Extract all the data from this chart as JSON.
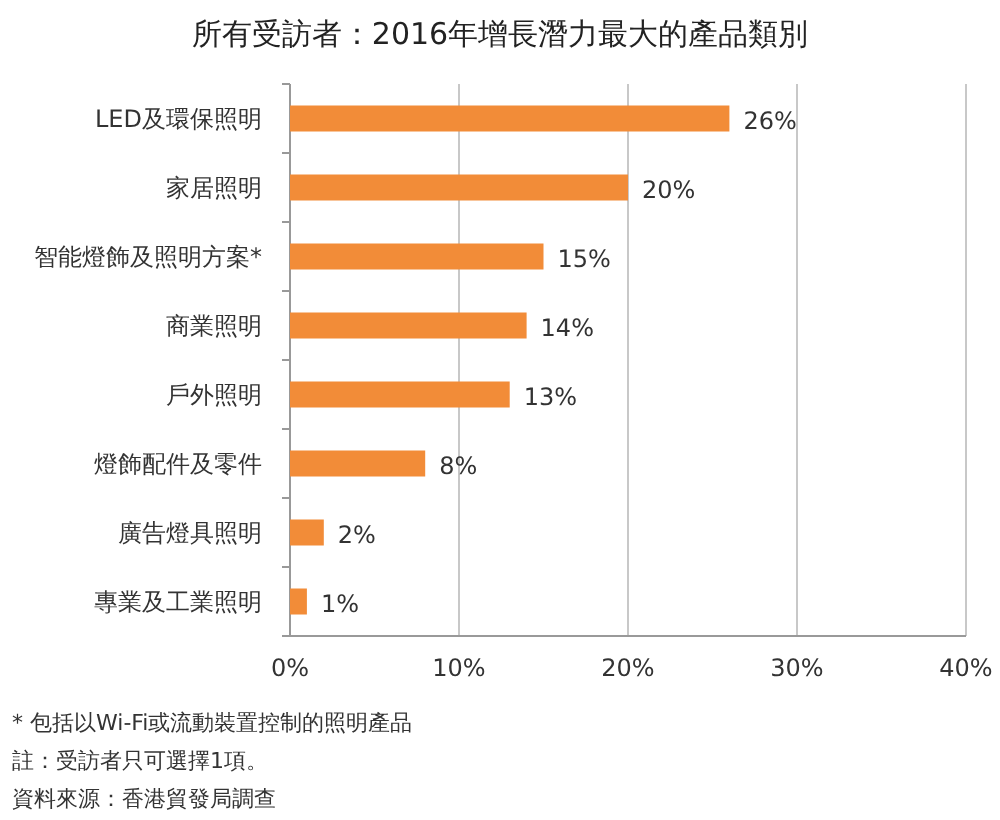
{
  "chart_data": {
    "type": "bar",
    "orientation": "horizontal",
    "title": "所有受訪者：2016年增長潛力最大的產品類別",
    "categories": [
      "LED及環保照明",
      "家居照明",
      "智能燈飾及照明方案*",
      "商業照明",
      "戶外照明",
      "燈飾配件及零件",
      "廣告燈具照明",
      "專業及工業照明"
    ],
    "values": [
      26,
      20,
      15,
      14,
      13,
      8,
      2,
      1
    ],
    "value_labels": [
      "26%",
      "20%",
      "15%",
      "14%",
      "13%",
      "8%",
      "2%",
      "1%"
    ],
    "color": "#f28c38",
    "xlim": [
      0,
      40
    ],
    "xticks": [
      {
        "value": 0,
        "label": "0%"
      },
      {
        "value": 10,
        "label": "10%"
      },
      {
        "value": 20,
        "label": "20%"
      },
      {
        "value": 30,
        "label": "30%"
      },
      {
        "value": 40,
        "label": "40%"
      }
    ],
    "grid": "x",
    "annotations": [
      "* 包括以Wi-Fi或流動裝置控制的照明產品",
      "註：受訪者只可選擇1項。",
      "資料來源：香港貿發局調查"
    ]
  }
}
